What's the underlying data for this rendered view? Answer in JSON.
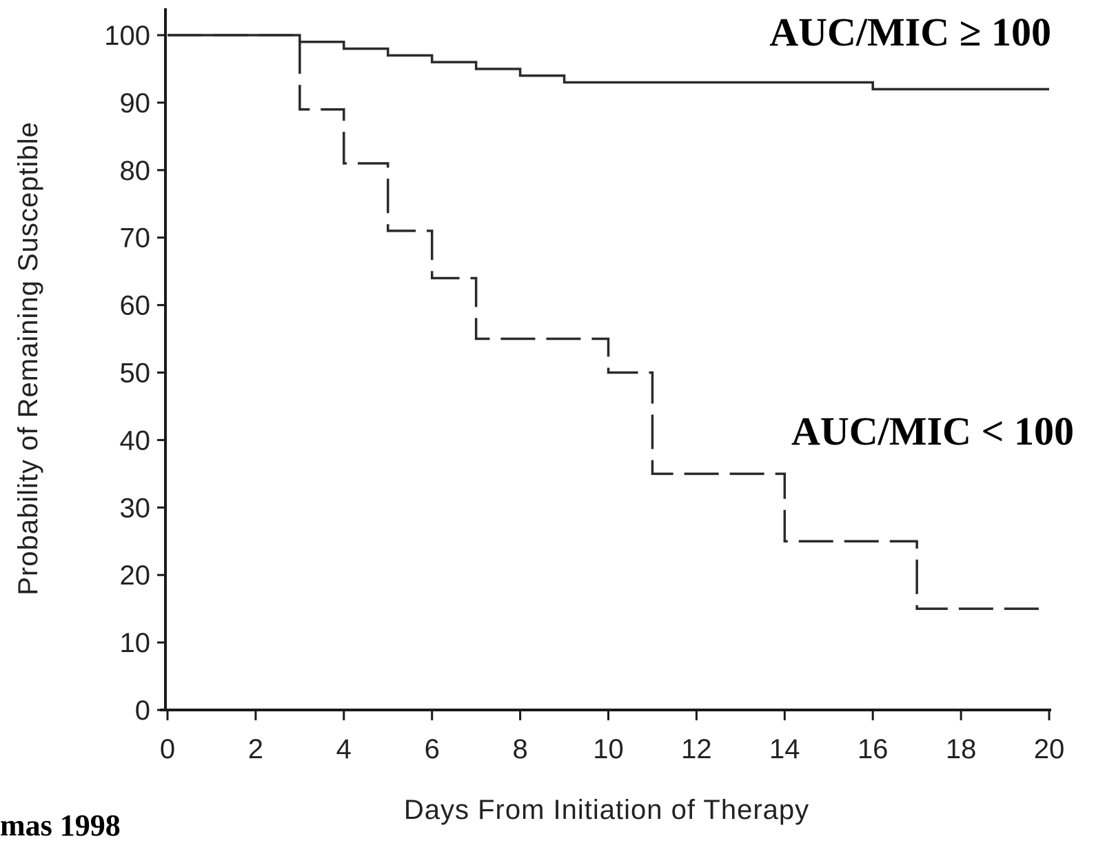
{
  "chart_data": {
    "type": "line",
    "title": "",
    "xlabel": "Days From Initiation of Therapy",
    "ylabel": "Probability of Remaining Susceptible",
    "xlim": [
      0,
      20
    ],
    "ylim": [
      0,
      100
    ],
    "x_ticks": [
      "0",
      "2",
      "4",
      "6",
      "8",
      "10",
      "12",
      "14",
      "16",
      "18",
      "20"
    ],
    "y_ticks": [
      "0",
      "10",
      "20",
      "30",
      "40",
      "50",
      "60",
      "70",
      "80",
      "90",
      "100"
    ],
    "grid": false,
    "step": true,
    "series": [
      {
        "name": "AUC/MIC ≥ 100",
        "line_style": "solid",
        "color": "#2a2a2a",
        "x": [
          0,
          3,
          4,
          5,
          6,
          7,
          8,
          9,
          16,
          20
        ],
        "y": [
          100,
          99,
          98,
          97,
          96,
          95,
          94,
          93,
          92,
          92
        ]
      },
      {
        "name": "AUC/MIC < 100",
        "line_style": "dashed",
        "color": "#2a2a2a",
        "x": [
          0,
          3,
          4,
          5,
          6,
          7,
          10,
          11,
          14,
          17,
          20
        ],
        "y": [
          100,
          89,
          81,
          71,
          64,
          55,
          50,
          35,
          25,
          15,
          15
        ]
      }
    ],
    "source": "mas 1998"
  }
}
